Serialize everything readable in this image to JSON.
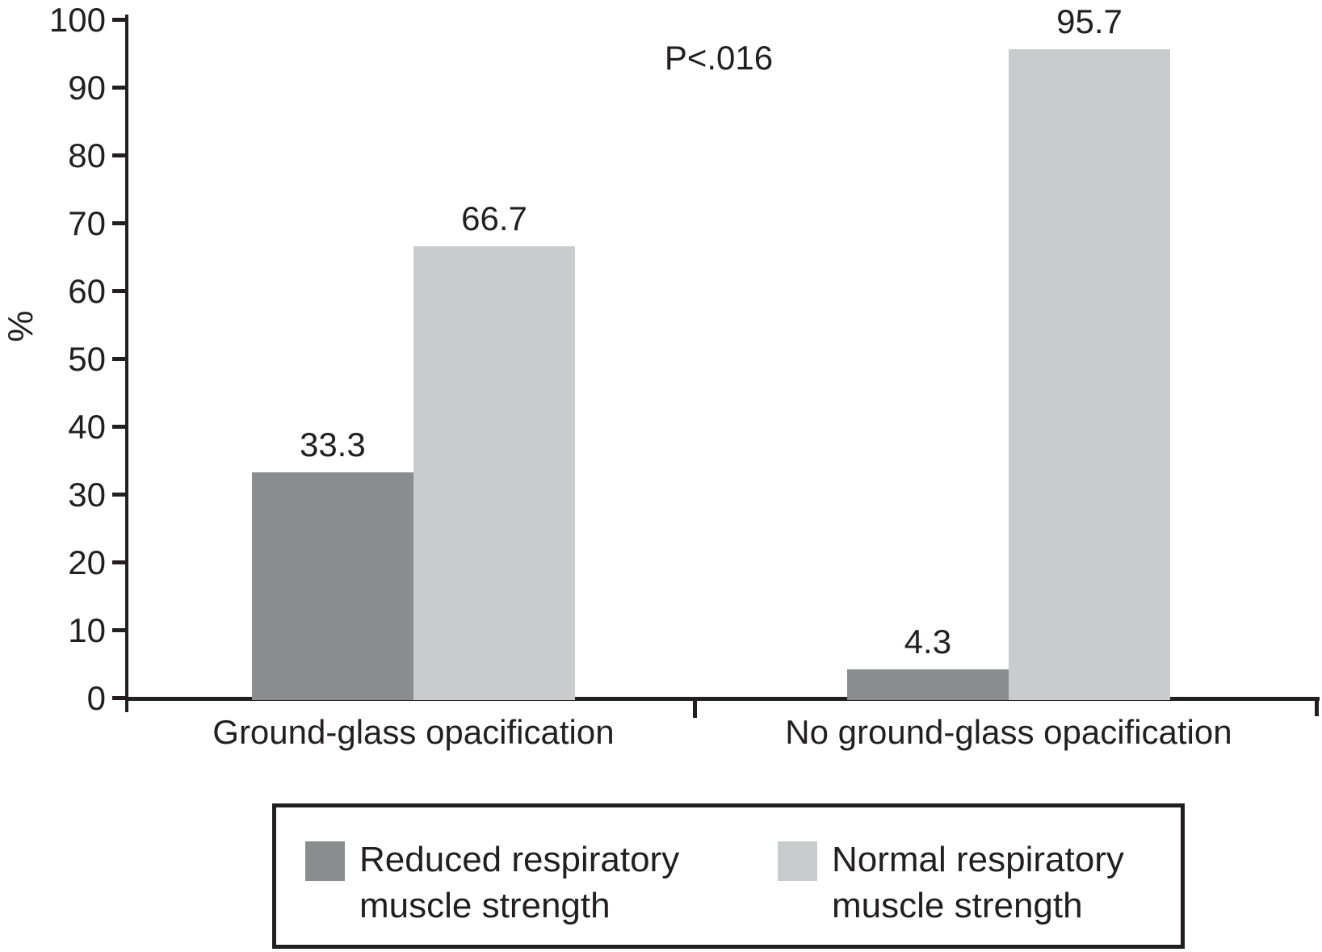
{
  "chart_data": {
    "type": "bar",
    "categories": [
      "Ground-glass opacification",
      "No ground-glass opacification"
    ],
    "series": [
      {
        "name": "Reduced respiratory muscle strength",
        "color": "#8a8c8e",
        "values": [
          33.3,
          4.3
        ]
      },
      {
        "name": "Normal respiratory muscle strength",
        "color": "#c9cbcd",
        "values": [
          66.7,
          95.7
        ]
      }
    ],
    "ylabel": "%",
    "ylim": [
      0,
      100
    ],
    "yticks": [
      0,
      10,
      20,
      30,
      40,
      50,
      60,
      70,
      80,
      90,
      100
    ],
    "annotation": "P<.016",
    "grid": false,
    "legend_position": "bottom-box",
    "bar_value_labels": [
      "33.3",
      "66.7",
      "4.3",
      "95.7"
    ]
  },
  "legend": {
    "items": [
      {
        "lines": [
          "Reduced respiratory",
          "muscle strength"
        ],
        "color": "#8a8c8e"
      },
      {
        "lines": [
          "Normal respiratory",
          "muscle strength"
        ],
        "color": "#c9cbcd"
      }
    ]
  }
}
